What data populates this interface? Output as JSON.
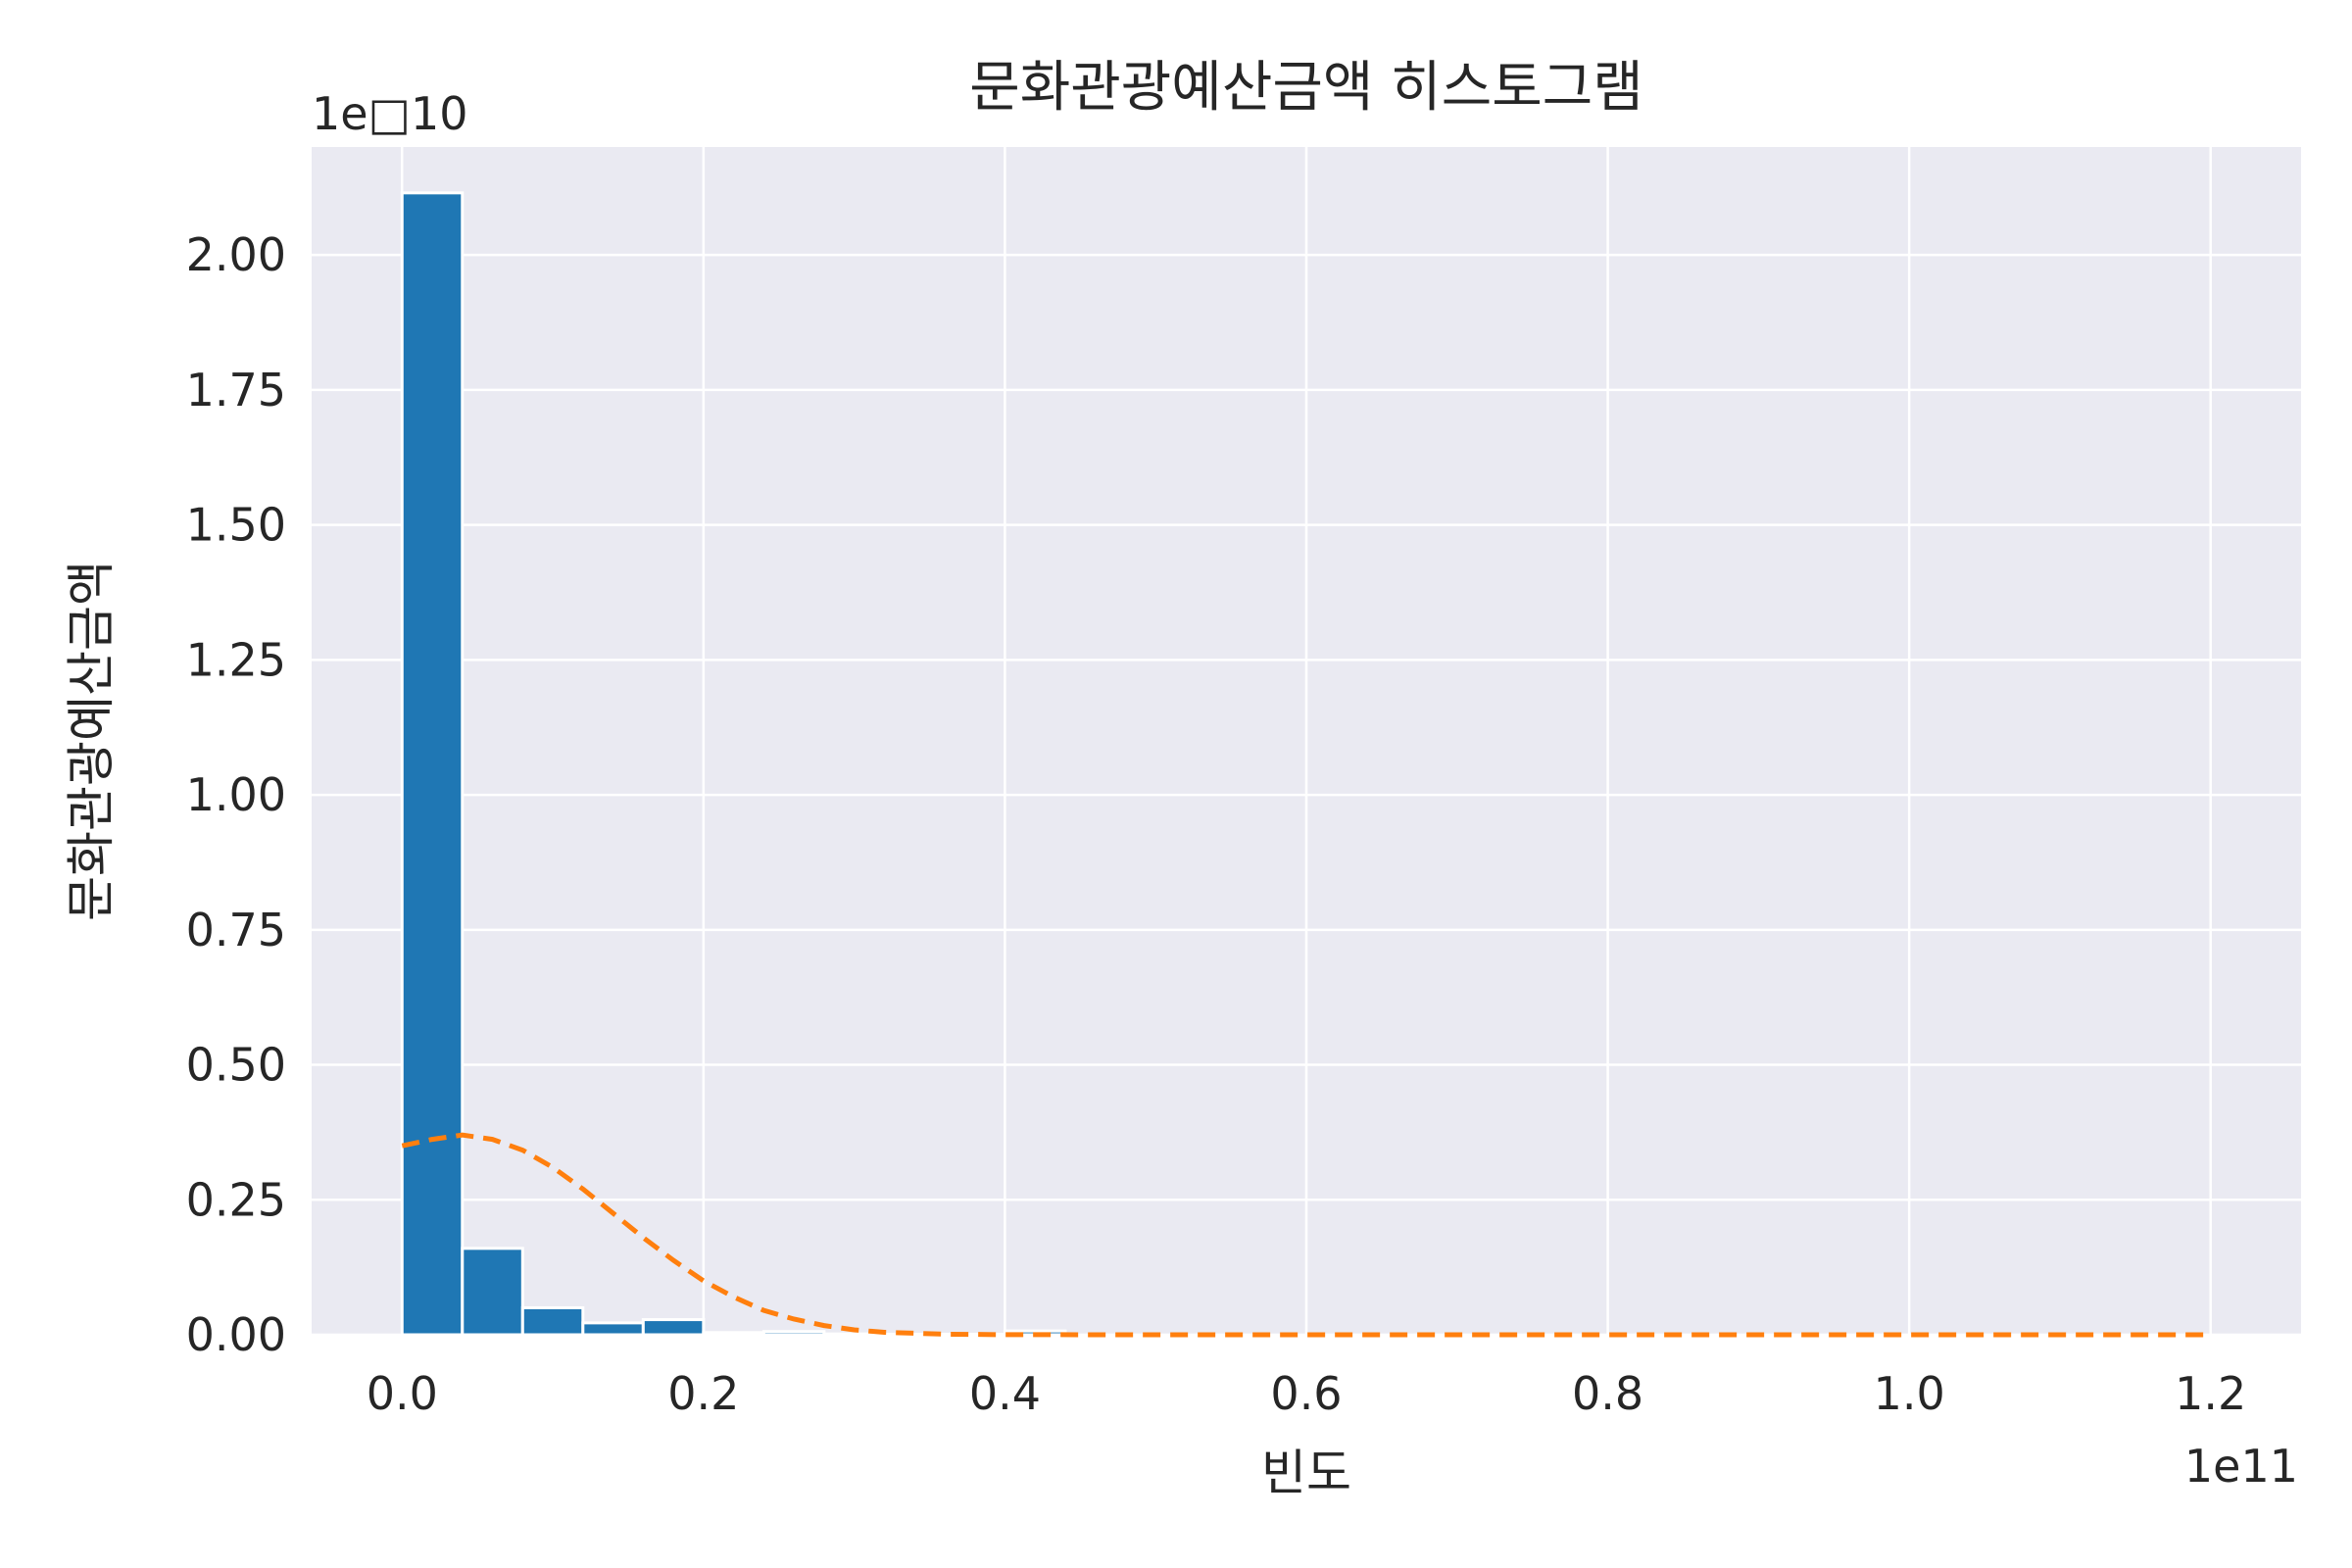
{
  "chart_data": {
    "type": "bar",
    "title": "문화관광예산금액 히스토그램",
    "xlabel": "빈도",
    "ylabel": "문화관광예산금액",
    "x_offset_label": "1e11",
    "y_offset_label": "1e□10",
    "xlim": [
      -6000000000,
      126000000000
    ],
    "ylim": [
      0,
      22000000000
    ],
    "x_ticks": [
      {
        "value": 0,
        "label": "0.0"
      },
      {
        "value": 20000000000,
        "label": "0.2"
      },
      {
        "value": 40000000000,
        "label": "0.4"
      },
      {
        "value": 60000000000,
        "label": "0.6"
      },
      {
        "value": 80000000000,
        "label": "0.8"
      },
      {
        "value": 100000000000,
        "label": "1.0"
      },
      {
        "value": 120000000000,
        "label": "1.2"
      }
    ],
    "y_ticks": [
      {
        "value": 0,
        "label": "0.00"
      },
      {
        "value": 2500000000,
        "label": "0.25"
      },
      {
        "value": 5000000000,
        "label": "0.50"
      },
      {
        "value": 7500000000,
        "label": "0.75"
      },
      {
        "value": 10000000000,
        "label": "1.00"
      },
      {
        "value": 12500000000,
        "label": "1.25"
      },
      {
        "value": 15000000000,
        "label": "1.50"
      },
      {
        "value": 17500000000,
        "label": "1.75"
      },
      {
        "value": 20000000000,
        "label": "2.00"
      }
    ],
    "grid": true,
    "bar_color": "#1f77b4",
    "curve_color": "#ff7f0e",
    "plot_background": "#eaeaf2",
    "bins": [
      {
        "x0": 0,
        "x1": 4000000000,
        "value": 21150000000
      },
      {
        "x0": 4000000000,
        "x1": 8000000000,
        "value": 1600000000
      },
      {
        "x0": 8000000000,
        "x1": 12000000000,
        "value": 500000000
      },
      {
        "x0": 12000000000,
        "x1": 16000000000,
        "value": 220000000
      },
      {
        "x0": 16000000000,
        "x1": 20000000000,
        "value": 280000000
      },
      {
        "x0": 20000000000,
        "x1": 24000000000,
        "value": 40000000
      },
      {
        "x0": 24000000000,
        "x1": 28000000000,
        "value": 60000000
      },
      {
        "x0": 28000000000,
        "x1": 32000000000,
        "value": 15000000
      },
      {
        "x0": 32000000000,
        "x1": 36000000000,
        "value": 10000000
      },
      {
        "x0": 36000000000,
        "x1": 40000000000,
        "value": 10000000
      },
      {
        "x0": 40000000000,
        "x1": 44000000000,
        "value": 70000000
      }
    ],
    "density_curve": {
      "style": "dashed",
      "points": [
        [
          0,
          3500000000
        ],
        [
          2000000000,
          3620000000
        ],
        [
          4000000000,
          3700000000
        ],
        [
          6000000000,
          3620000000
        ],
        [
          8000000000,
          3420000000
        ],
        [
          10000000000,
          3100000000
        ],
        [
          12000000000,
          2700000000
        ],
        [
          14000000000,
          2250000000
        ],
        [
          16000000000,
          1800000000
        ],
        [
          18000000000,
          1380000000
        ],
        [
          20000000000,
          1000000000
        ],
        [
          22000000000,
          700000000
        ],
        [
          24000000000,
          450000000
        ],
        [
          26000000000,
          290000000
        ],
        [
          28000000000,
          170000000
        ],
        [
          30000000000,
          90000000
        ],
        [
          32000000000,
          45000000
        ],
        [
          36000000000,
          10000000
        ],
        [
          40000000000,
          2000000
        ],
        [
          50000000000,
          0
        ],
        [
          60000000000,
          0
        ],
        [
          80000000000,
          0
        ],
        [
          100000000000,
          0
        ],
        [
          120000000000,
          0
        ]
      ]
    }
  }
}
